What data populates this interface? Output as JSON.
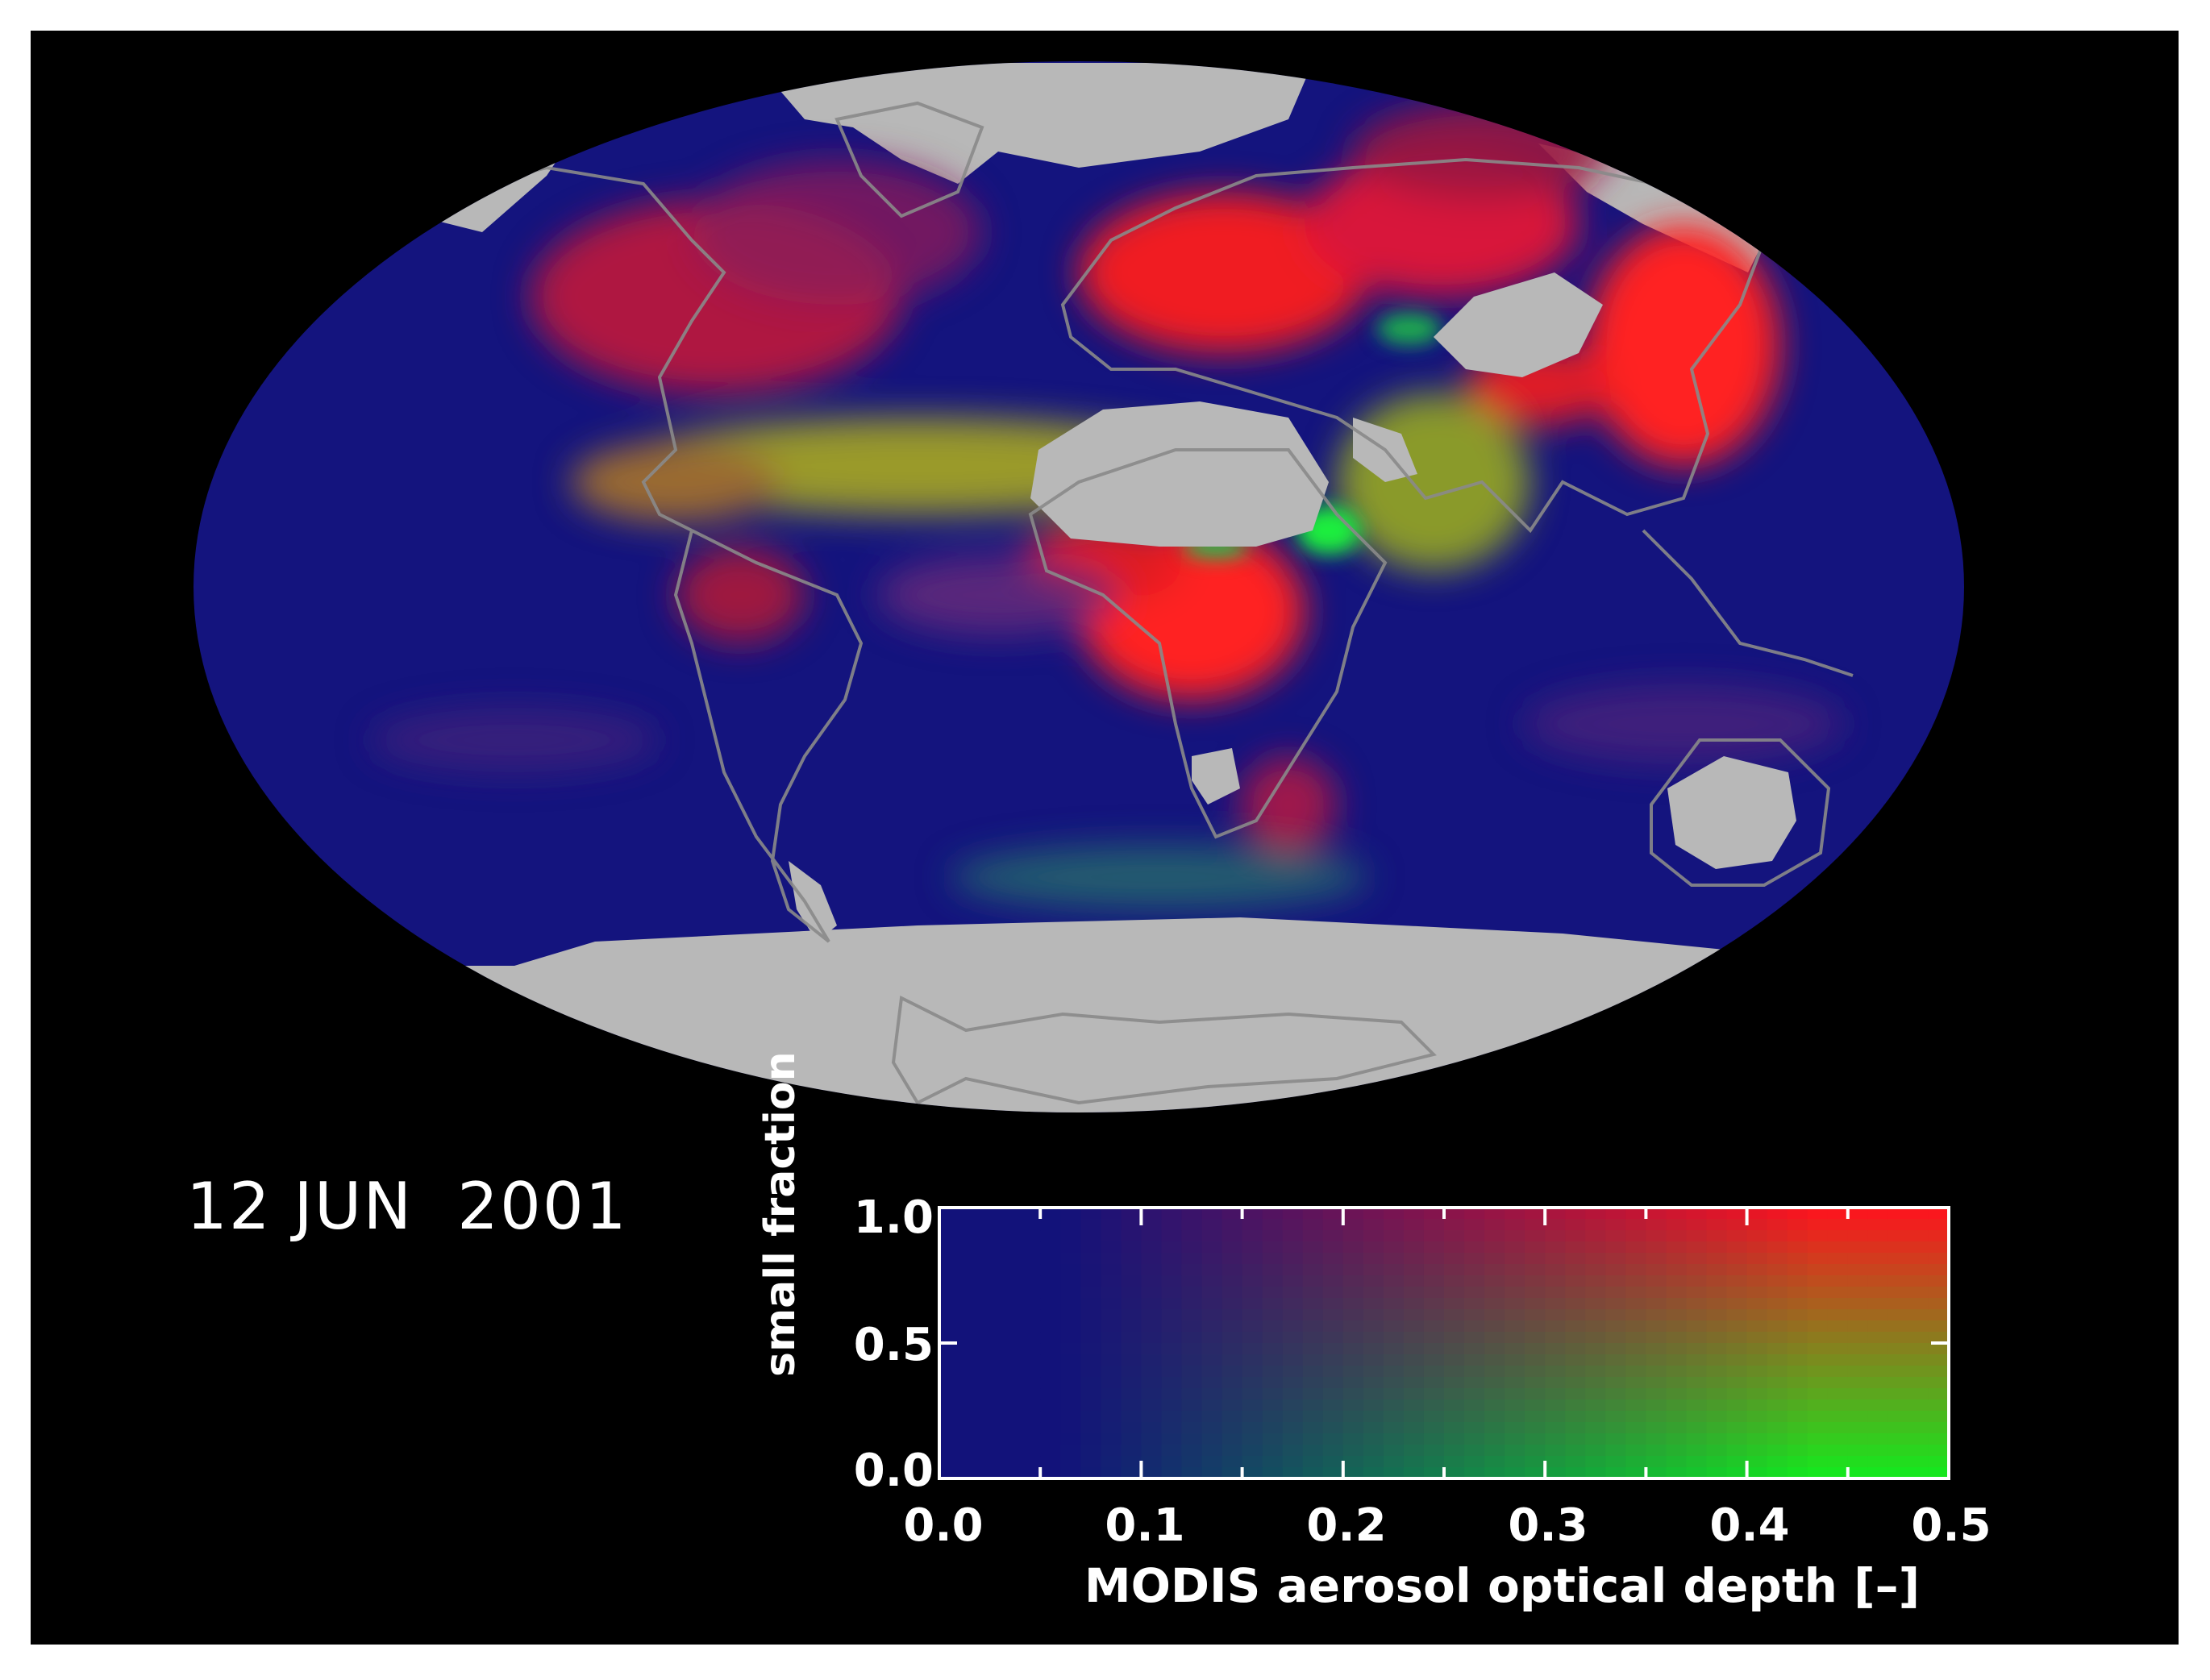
{
  "date": "12 JUN  2001",
  "colorbar": {
    "y_axis_title": "small fraction",
    "x_axis_title": "MODIS aerosol optical depth [–]",
    "y_ticks": [
      "1.0",
      "0.5",
      "0.0"
    ],
    "x_ticks": [
      "0.0",
      "0.1",
      "0.2",
      "0.3",
      "0.4",
      "0.5"
    ],
    "y_range": [
      0.0,
      1.0
    ],
    "x_range": [
      0.0,
      0.5
    ]
  },
  "colors": {
    "background": "#000000",
    "frame": "#ffffff",
    "no_data": "#b8b8b8",
    "low_aod": "#12127a",
    "fine_mode_high_aod": "#ff1e1e",
    "coarse_mode_high_aod": "#1eef3c",
    "mixed_high_aod": "#9a9a28",
    "coastline": "#8a8a8a"
  },
  "map": {
    "projection": "mollweide"
  }
}
